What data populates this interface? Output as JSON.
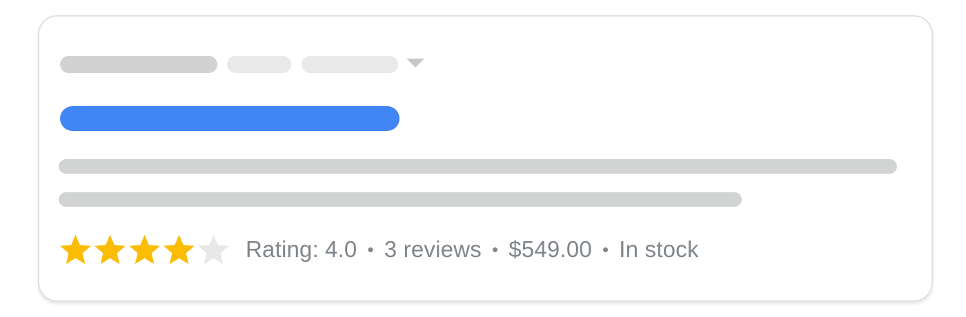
{
  "colors": {
    "title_bar_blue": "#4285f4",
    "star_filled_gold": "#fbbc04",
    "star_empty_gray": "#e8e8e8",
    "breadcrumb_pill_dark": "#d2d2d2",
    "breadcrumb_pill_light": "#e9e9e9",
    "text_line_gray": "#d2d4d3",
    "caret_gray": "#c5c8c6",
    "meta_text_gray": "#80868b",
    "card_background": "#ffffff",
    "card_border": "#dfe0e1"
  },
  "rating": {
    "stars_total": 5,
    "stars_filled": 4
  },
  "meta": {
    "rating_label": "Rating:",
    "rating_value": "4.0",
    "separator": "•",
    "review_count": "3 reviews",
    "price": "$549.00",
    "availability": "In stock"
  },
  "icons": {
    "caret_down": "▾",
    "star_filled": "★",
    "star_empty": "☆"
  }
}
